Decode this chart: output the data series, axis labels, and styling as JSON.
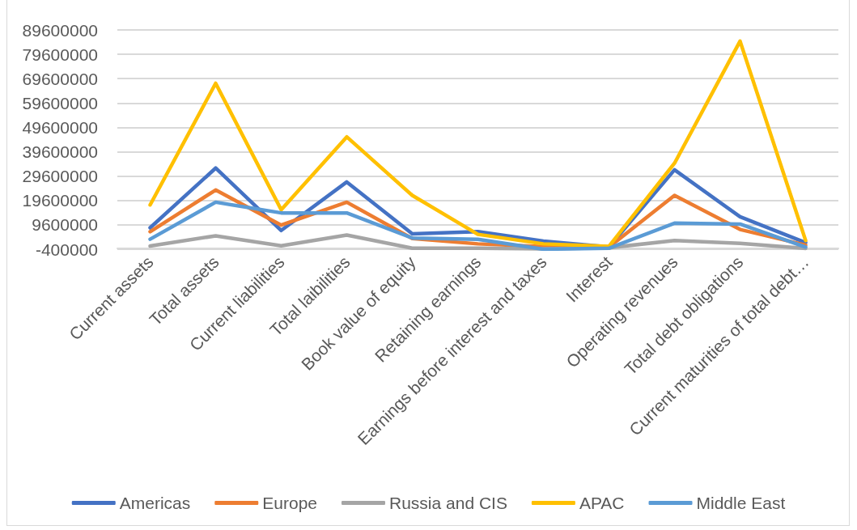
{
  "chart_data": {
    "type": "line",
    "categories": [
      "Current assets",
      "Total assets",
      "Current liabilities",
      "Total laibilities",
      "Book value of equity",
      "Retaining earnings",
      "Earnings before interest and taxes",
      "Interest",
      "Operating revenues",
      "Total debt obligations",
      "Current maturities of total debt…"
    ],
    "series": [
      {
        "name": "Americas",
        "color": "#4472c4",
        "values": [
          8400000,
          32900000,
          7300000,
          27200000,
          5900000,
          6800000,
          2900000,
          500000,
          32200000,
          12900000,
          2300000
        ]
      },
      {
        "name": "Europe",
        "color": "#ed7d31",
        "values": [
          6800000,
          23900000,
          9500000,
          18900000,
          4000000,
          1800000,
          700000,
          500000,
          21700000,
          7700000,
          1300000
        ]
      },
      {
        "name": "Russia and CIS",
        "color": "#a5a5a5",
        "values": [
          900000,
          5100000,
          1000000,
          5400000,
          0,
          0,
          -200000,
          200000,
          3200000,
          2000000,
          -100000
        ]
      },
      {
        "name": "APAC",
        "color": "#ffc000",
        "values": [
          17800000,
          67700000,
          15800000,
          45700000,
          21700000,
          5700000,
          1800000,
          800000,
          34900000,
          85000000,
          3200000
        ]
      },
      {
        "name": "Middle East",
        "color": "#5b9bd5",
        "values": [
          3700000,
          18900000,
          14500000,
          14500000,
          4200000,
          3700000,
          -400000,
          0,
          10300000,
          9900000,
          500000
        ]
      }
    ],
    "ylim": [
      -400000,
      89600000
    ],
    "yticks": [
      -400000,
      9600000,
      19600000,
      29600000,
      39600000,
      49600000,
      59600000,
      69600000,
      79600000,
      89600000
    ],
    "grid": "y",
    "legend": "bottom"
  }
}
